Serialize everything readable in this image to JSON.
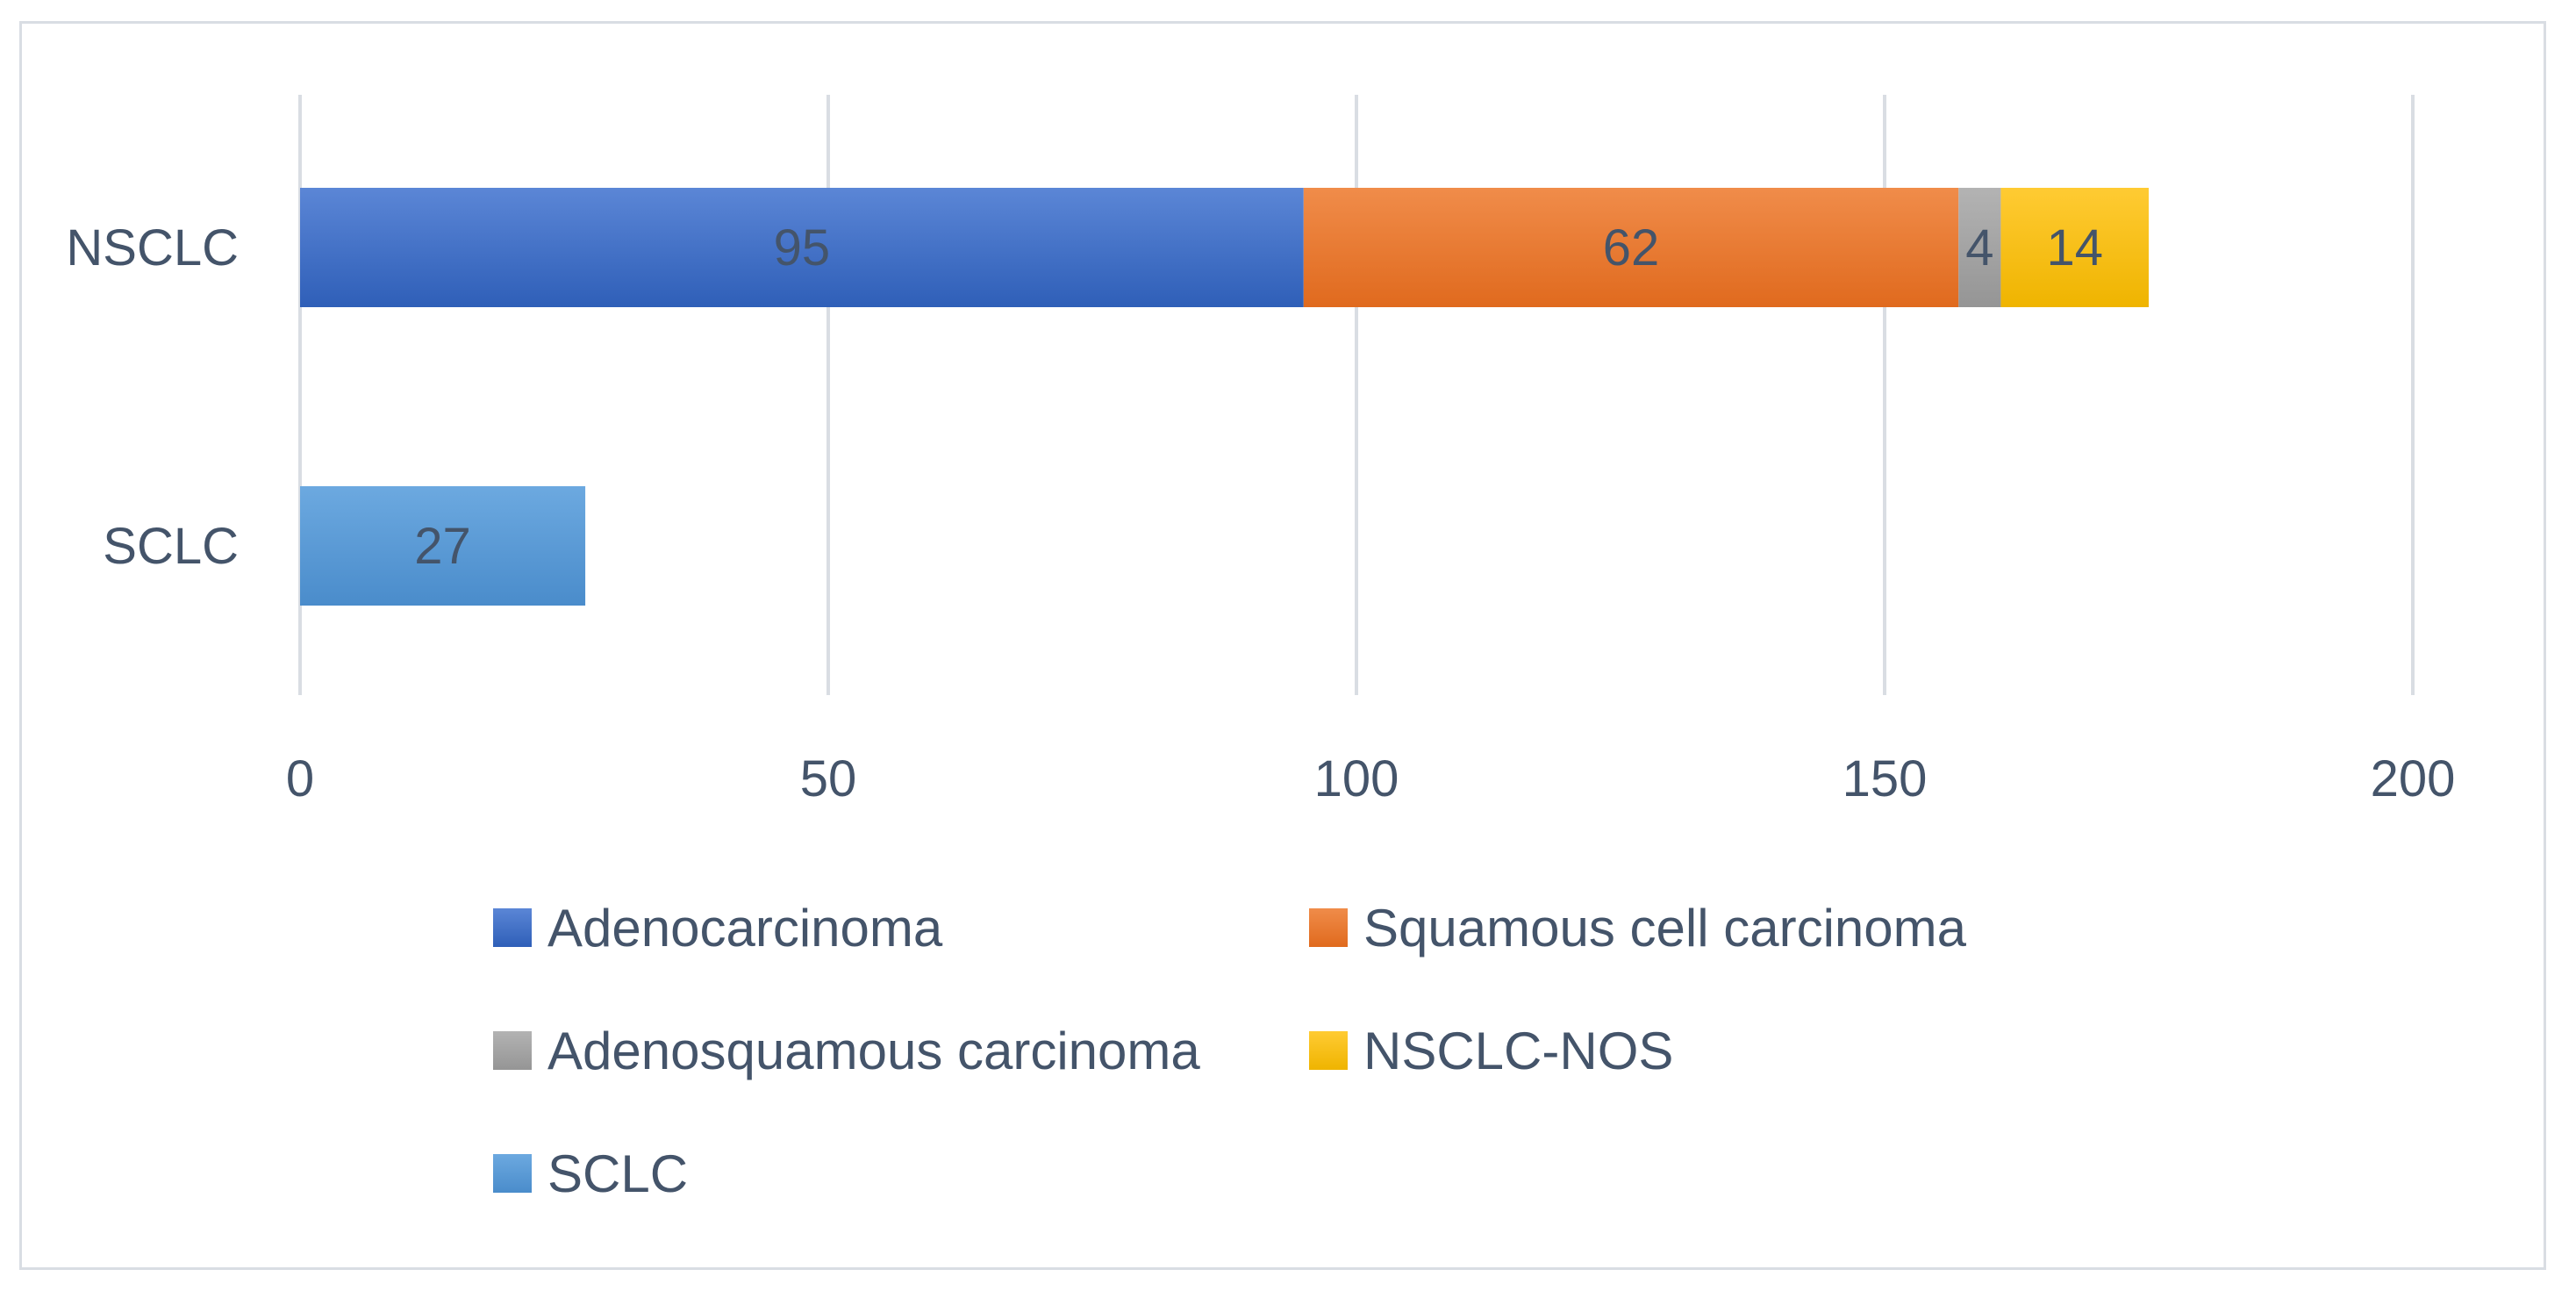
{
  "chart_data": {
    "type": "bar",
    "orientation": "horizontal",
    "stacked": true,
    "title": "",
    "xlabel": "",
    "ylabel": "",
    "categories": [
      "NSCLC",
      "SCLC"
    ],
    "xlim": [
      0,
      200
    ],
    "xticks": [
      0,
      50,
      100,
      150,
      200
    ],
    "grid": "vertical",
    "legend_position": "bottom",
    "series": [
      {
        "name": "Adenocarcinoma",
        "values": [
          95,
          null
        ],
        "color": "#4472c4",
        "color_light": "#5b86d6",
        "color_dark": "#2f5fb8"
      },
      {
        "name": "Squamous cell carcinoma",
        "values": [
          62,
          null
        ],
        "color": "#ed7d31",
        "color_light": "#f08c4a",
        "color_dark": "#e06a1e"
      },
      {
        "name": "Adenosquamous carcinoma",
        "values": [
          4,
          null
        ],
        "color": "#a5a5a5",
        "color_light": "#b3b3b3",
        "color_dark": "#959595"
      },
      {
        "name": "NSCLC-NOS",
        "values": [
          14,
          null
        ],
        "color": "#ffc000",
        "color_light": "#ffcb33",
        "color_dark": "#efb400"
      },
      {
        "name": "SCLC",
        "values": [
          null,
          27
        ],
        "color": "#5b9bd5",
        "color_light": "#6ca9e0",
        "color_dark": "#4a8ccb"
      }
    ]
  }
}
